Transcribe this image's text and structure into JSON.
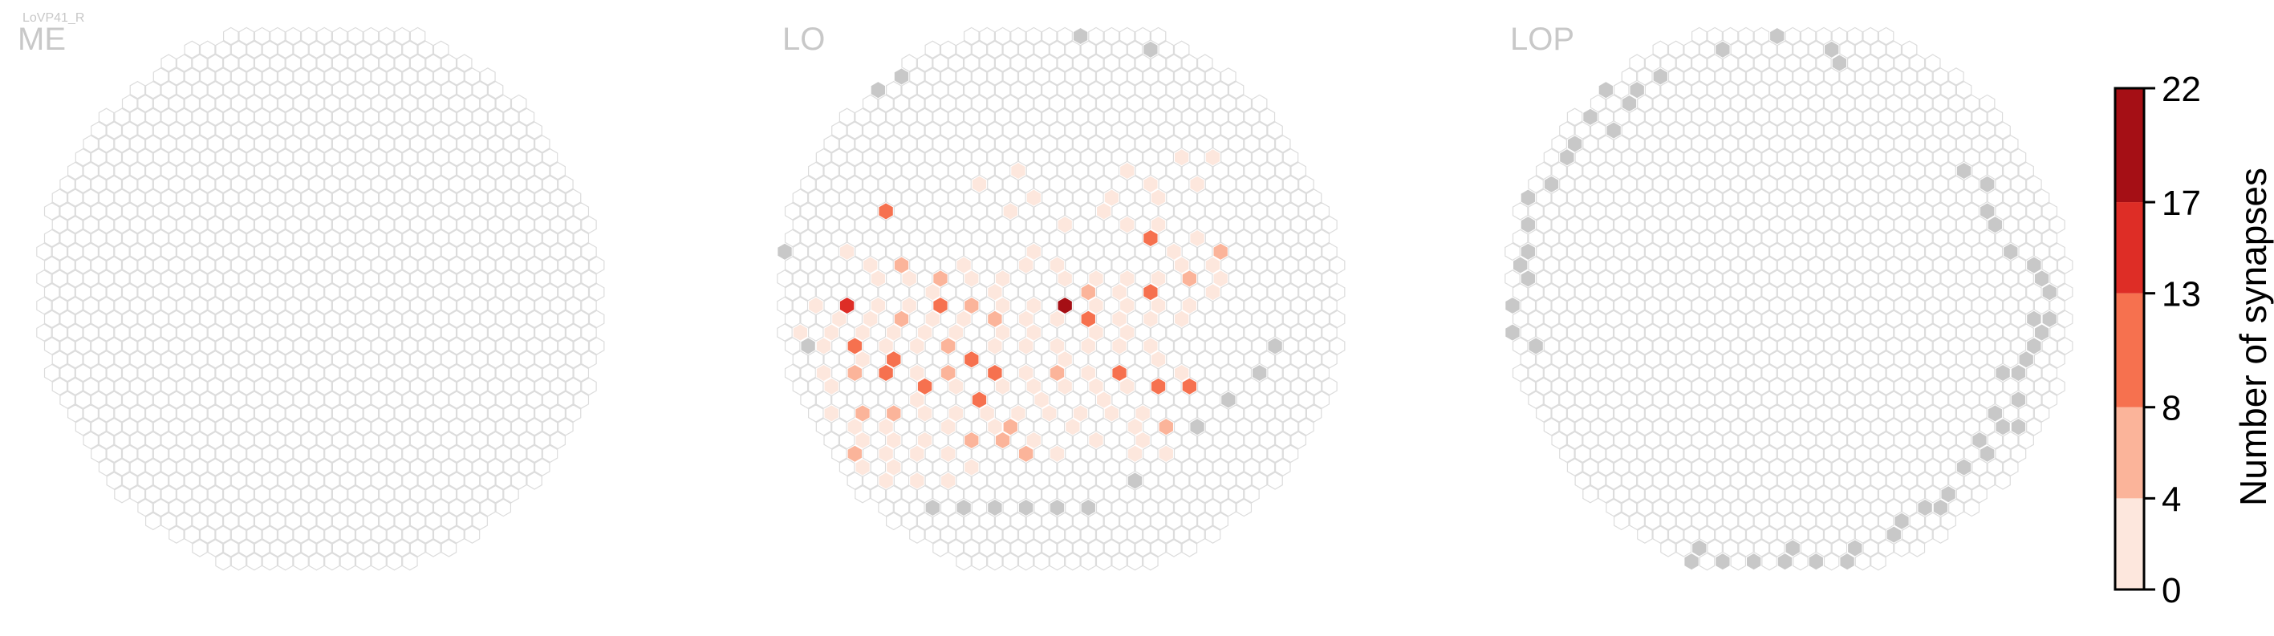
{
  "cell_type": "LoVP41_R",
  "colors": {
    "empty_stroke": "#dcdcdc",
    "edge_gray": "#c8c8c8",
    "panel_title": "#c8c8c8",
    "bins": [
      "#fde7dd",
      "#fbb49a",
      "#f6714f",
      "#de2d26",
      "#a50f15"
    ]
  },
  "chart_data": [
    {
      "type": "heatmap",
      "panel": "ME",
      "title": "ME",
      "grid_shape": "hexagonal-columnar",
      "gray_cells": [],
      "values": []
    },
    {
      "type": "heatmap",
      "panel": "LO",
      "title": "LO",
      "grid_shape": "hexagonal-columnar",
      "gray_cells": [
        [
          19,
          0
        ],
        [
          23,
          1
        ],
        [
          6,
          4
        ],
        [
          7,
          3
        ],
        [
          1,
          10
        ],
        [
          0,
          16
        ],
        [
          1,
          23
        ],
        [
          31,
          23
        ],
        [
          30,
          25
        ],
        [
          28,
          27
        ],
        [
          26,
          29
        ],
        [
          24,
          31
        ],
        [
          22,
          33
        ],
        [
          11,
          35
        ],
        [
          13,
          35
        ],
        [
          15,
          35
        ],
        [
          17,
          35
        ],
        [
          19,
          35
        ],
        [
          9,
          35
        ]
      ],
      "values": [
        [
          15,
          10,
          1
        ],
        [
          25,
          9,
          1
        ],
        [
          26,
          11,
          2
        ],
        [
          27,
          9,
          3
        ],
        [
          22,
          10,
          1
        ],
        [
          23,
          11,
          2
        ],
        [
          24,
          12,
          1
        ],
        [
          6,
          13,
          9
        ],
        [
          12,
          11,
          3
        ],
        [
          14,
          13,
          1
        ],
        [
          16,
          12,
          2
        ],
        [
          18,
          14,
          1
        ],
        [
          20,
          13,
          2
        ],
        [
          21,
          12,
          1
        ],
        [
          22,
          14,
          4
        ],
        [
          23,
          15,
          12
        ],
        [
          24,
          14,
          2
        ],
        [
          25,
          16,
          1
        ],
        [
          26,
          15,
          3
        ],
        [
          27,
          17,
          4
        ],
        [
          28,
          16,
          6
        ],
        [
          4,
          16,
          2
        ],
        [
          5,
          17,
          2
        ],
        [
          6,
          18,
          3
        ],
        [
          7,
          17,
          5
        ],
        [
          8,
          18,
          2
        ],
        [
          9,
          19,
          1
        ],
        [
          10,
          18,
          7
        ],
        [
          11,
          17,
          3
        ],
        [
          12,
          18,
          2
        ],
        [
          13,
          19,
          1
        ],
        [
          14,
          18,
          2
        ],
        [
          15,
          17,
          2
        ],
        [
          16,
          16,
          1
        ],
        [
          17,
          17,
          3
        ],
        [
          18,
          18,
          2
        ],
        [
          19,
          19,
          6
        ],
        [
          20,
          18,
          4
        ],
        [
          21,
          19,
          1
        ],
        [
          22,
          18,
          3
        ],
        [
          23,
          19,
          9
        ],
        [
          24,
          18,
          2
        ],
        [
          25,
          17,
          3
        ],
        [
          26,
          18,
          7
        ],
        [
          27,
          19,
          2
        ],
        [
          28,
          18,
          3
        ],
        [
          2,
          20,
          1
        ],
        [
          3,
          21,
          2
        ],
        [
          4,
          20,
          14
        ],
        [
          5,
          21,
          3
        ],
        [
          6,
          20,
          1
        ],
        [
          7,
          21,
          5
        ],
        [
          8,
          20,
          4
        ],
        [
          9,
          21,
          2
        ],
        [
          10,
          20,
          12
        ],
        [
          11,
          21,
          1
        ],
        [
          12,
          20,
          6
        ],
        [
          13,
          21,
          5
        ],
        [
          14,
          20,
          2
        ],
        [
          15,
          21,
          2
        ],
        [
          16,
          20,
          3
        ],
        [
          17,
          21,
          3
        ],
        [
          18,
          20,
          22
        ],
        [
          19,
          21,
          10
        ],
        [
          20,
          20,
          1
        ],
        [
          21,
          21,
          3
        ],
        [
          22,
          20,
          2
        ],
        [
          23,
          21,
          3
        ],
        [
          24,
          20,
          4
        ],
        [
          25,
          21,
          2
        ],
        [
          26,
          20,
          1
        ],
        [
          1,
          22,
          2
        ],
        [
          2,
          23,
          1
        ],
        [
          3,
          22,
          3
        ],
        [
          4,
          23,
          9
        ],
        [
          5,
          22,
          2
        ],
        [
          6,
          23,
          4
        ],
        [
          7,
          22,
          1
        ],
        [
          8,
          23,
          2
        ],
        [
          9,
          22,
          3
        ],
        [
          10,
          23,
          6
        ],
        [
          11,
          22,
          2
        ],
        [
          12,
          24,
          12
        ],
        [
          13,
          23,
          2
        ],
        [
          14,
          22,
          3
        ],
        [
          15,
          23,
          1
        ],
        [
          16,
          22,
          2
        ],
        [
          17,
          23,
          3
        ],
        [
          18,
          24,
          1
        ],
        [
          19,
          23,
          2
        ],
        [
          20,
          22,
          3
        ],
        [
          21,
          23,
          1
        ],
        [
          22,
          22,
          2
        ],
        [
          23,
          23,
          4
        ],
        [
          24,
          24,
          3
        ],
        [
          2,
          25,
          2
        ],
        [
          3,
          26,
          4
        ],
        [
          4,
          25,
          5
        ],
        [
          5,
          24,
          4
        ],
        [
          6,
          25,
          13
        ],
        [
          7,
          24,
          11
        ],
        [
          8,
          25,
          3
        ],
        [
          9,
          26,
          12
        ],
        [
          10,
          25,
          5
        ],
        [
          11,
          26,
          2
        ],
        [
          13,
          25,
          12
        ],
        [
          14,
          26,
          3
        ],
        [
          15,
          25,
          3
        ],
        [
          16,
          26,
          2
        ],
        [
          17,
          25,
          6
        ],
        [
          18,
          26,
          2
        ],
        [
          19,
          25,
          3
        ],
        [
          20,
          26,
          2
        ],
        [
          21,
          25,
          11
        ],
        [
          22,
          26,
          3
        ],
        [
          24,
          26,
          12
        ],
        [
          25,
          25,
          2
        ],
        [
          26,
          26,
          13
        ],
        [
          3,
          28,
          2
        ],
        [
          4,
          29,
          2
        ],
        [
          5,
          28,
          5
        ],
        [
          6,
          29,
          3
        ],
        [
          7,
          28,
          5
        ],
        [
          8,
          27,
          3
        ],
        [
          9,
          28,
          4
        ],
        [
          10,
          29,
          2
        ],
        [
          11,
          28,
          4
        ],
        [
          12,
          27,
          10
        ],
        [
          13,
          28,
          4
        ],
        [
          14,
          29,
          6
        ],
        [
          15,
          28,
          2
        ],
        [
          16,
          27,
          2
        ],
        [
          17,
          28,
          3
        ],
        [
          18,
          29,
          1
        ],
        [
          19,
          28,
          2
        ],
        [
          20,
          27,
          1
        ],
        [
          21,
          28,
          2
        ],
        [
          22,
          29,
          3
        ],
        [
          23,
          28,
          2
        ],
        [
          24,
          29,
          5
        ],
        [
          4,
          31,
          8
        ],
        [
          5,
          30,
          2
        ],
        [
          6,
          31,
          3
        ],
        [
          7,
          30,
          2
        ],
        [
          8,
          31,
          4
        ],
        [
          9,
          30,
          3
        ],
        [
          10,
          31,
          2
        ],
        [
          12,
          30,
          6
        ],
        [
          13,
          29,
          2
        ],
        [
          14,
          30,
          7
        ],
        [
          15,
          31,
          5
        ],
        [
          16,
          30,
          2
        ],
        [
          17,
          31,
          1
        ],
        [
          20,
          30,
          1
        ],
        [
          22,
          31,
          2
        ],
        [
          23,
          30,
          3
        ],
        [
          24,
          31,
          2
        ],
        [
          5,
          32,
          2
        ],
        [
          6,
          33,
          2
        ],
        [
          7,
          32,
          1
        ],
        [
          8,
          33,
          2
        ],
        [
          10,
          33,
          1
        ],
        [
          12,
          32,
          2
        ]
      ]
    },
    {
      "type": "heatmap",
      "panel": "LOP",
      "title": "LOP",
      "grid_shape": "hexagonal-columnar",
      "gray_cells": [
        [
          13,
          1
        ],
        [
          17,
          0
        ],
        [
          20,
          1
        ],
        [
          21,
          2
        ],
        [
          6,
          4
        ],
        [
          7,
          5
        ],
        [
          8,
          4
        ],
        [
          9,
          3
        ],
        [
          5,
          6
        ],
        [
          6,
          7
        ],
        [
          4,
          8
        ],
        [
          3,
          9
        ],
        [
          2,
          11
        ],
        [
          1,
          12
        ],
        [
          1,
          14
        ],
        [
          1,
          16
        ],
        [
          0,
          17
        ],
        [
          1,
          18
        ],
        [
          0,
          20
        ],
        [
          0,
          22
        ],
        [
          1,
          23
        ],
        [
          0,
          24
        ],
        [
          0,
          26
        ],
        [
          0,
          28
        ],
        [
          0,
          30
        ],
        [
          1,
          31
        ],
        [
          1,
          33
        ],
        [
          2,
          34
        ],
        [
          3,
          35
        ],
        [
          3,
          33
        ],
        [
          4,
          35
        ],
        [
          4,
          37
        ],
        [
          5,
          36
        ],
        [
          6,
          38
        ],
        [
          7,
          38
        ],
        [
          9,
          39
        ],
        [
          11,
          39
        ],
        [
          12,
          38
        ],
        [
          13,
          39
        ],
        [
          15,
          39
        ],
        [
          17,
          39
        ],
        [
          18,
          38
        ],
        [
          19,
          39
        ],
        [
          21,
          39
        ],
        [
          22,
          38
        ],
        [
          24,
          37
        ],
        [
          25,
          36
        ],
        [
          26,
          35
        ],
        [
          27,
          35
        ],
        [
          28,
          34
        ],
        [
          29,
          32
        ],
        [
          30,
          31
        ],
        [
          30,
          30
        ],
        [
          31,
          29
        ],
        [
          31,
          28
        ],
        [
          32,
          27
        ],
        [
          32,
          25
        ],
        [
          33,
          24
        ],
        [
          33,
          23
        ],
        [
          34,
          22
        ],
        [
          34,
          21
        ],
        [
          34,
          19
        ],
        [
          34,
          18
        ],
        [
          33,
          17
        ],
        [
          32,
          16
        ],
        [
          31,
          14
        ],
        [
          30,
          13
        ],
        [
          30,
          11
        ],
        [
          29,
          10
        ],
        [
          31,
          25
        ],
        [
          32,
          29
        ],
        [
          33,
          21
        ]
      ],
      "values": []
    }
  ],
  "colorbar": {
    "label": "Number of synapses",
    "ticks": [
      "0",
      "4",
      "8",
      "13",
      "17",
      "22"
    ],
    "bin_edges": [
      0,
      4,
      8,
      13,
      17,
      22
    ]
  }
}
